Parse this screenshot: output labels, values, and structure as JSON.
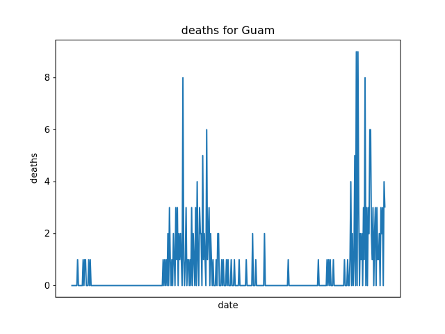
{
  "chart_data": {
    "type": "line",
    "title": "deaths for Guam",
    "xlabel": "date",
    "ylabel": "deaths",
    "ylim": [
      -0.45,
      9.45
    ],
    "yticks": [
      0,
      2,
      4,
      6,
      8
    ],
    "grid": false,
    "legend": "none",
    "x_tick_labels": [],
    "series": [
      {
        "color": "#1f77b4",
        "values": [
          0,
          0,
          0,
          0,
          0,
          0,
          0,
          0,
          1,
          0,
          0,
          0,
          0,
          0,
          0,
          1,
          0,
          1,
          1,
          0,
          0,
          0,
          1,
          0,
          1,
          0,
          0,
          0,
          0,
          0,
          0,
          0,
          0,
          0,
          0,
          0,
          0,
          0,
          0,
          0,
          0,
          0,
          0,
          0,
          0,
          0,
          0,
          0,
          0,
          0,
          0,
          0,
          0,
          0,
          0,
          0,
          0,
          0,
          0,
          0,
          0,
          0,
          0,
          0,
          0,
          0,
          0,
          0,
          0,
          0,
          0,
          0,
          0,
          0,
          0,
          0,
          0,
          0,
          0,
          0,
          0,
          0,
          0,
          0,
          0,
          0,
          0,
          0,
          0,
          0,
          0,
          0,
          0,
          0,
          0,
          0,
          0,
          0,
          0,
          0,
          0,
          0,
          0,
          0,
          0,
          0,
          0,
          0,
          0,
          0,
          0,
          0,
          0,
          0,
          0,
          0,
          1,
          0,
          1,
          0,
          1,
          0,
          2,
          0,
          3,
          1,
          0,
          1,
          0,
          2,
          1,
          0,
          3,
          1,
          3,
          0,
          2,
          1,
          2,
          1,
          0,
          8,
          1,
          0,
          1,
          3,
          0,
          1,
          1,
          0,
          1,
          0,
          3,
          0,
          2,
          1,
          0,
          3,
          0,
          4,
          1,
          0,
          3,
          2,
          2,
          0,
          5,
          1,
          2,
          1,
          0,
          6,
          1,
          2,
          3,
          0,
          2,
          1,
          0,
          1,
          0,
          0,
          0,
          1,
          0,
          2,
          2,
          0,
          0,
          0,
          1,
          0,
          1,
          0,
          0,
          0,
          1,
          0,
          1,
          0,
          0,
          0,
          1,
          0,
          0,
          0,
          1,
          0,
          0,
          0,
          0,
          0,
          1,
          0,
          0,
          0,
          0,
          0,
          0,
          0,
          0,
          1,
          0,
          0,
          0,
          0,
          0,
          0,
          0,
          2,
          0,
          0,
          0,
          1,
          0,
          0,
          0,
          0,
          0,
          0,
          0,
          0,
          0,
          0,
          2,
          0,
          0,
          0,
          0,
          0,
          0,
          0,
          0,
          0,
          0,
          0,
          0,
          0,
          0,
          0,
          0,
          0,
          0,
          0,
          0,
          0,
          0,
          0,
          0,
          0,
          0,
          0,
          0,
          0,
          1,
          0,
          0,
          0,
          0,
          0,
          0,
          0,
          0,
          0,
          0,
          0,
          0,
          0,
          0,
          0,
          0,
          0,
          0,
          0,
          0,
          0,
          0,
          0,
          0,
          0,
          0,
          0,
          0,
          0,
          0,
          0,
          0,
          0,
          0,
          0,
          0,
          0,
          1,
          0,
          0,
          0,
          0,
          0,
          0,
          0,
          0,
          0,
          0,
          1,
          0,
          1,
          0,
          1,
          0,
          0,
          0,
          1,
          0,
          0,
          0,
          0,
          0,
          0,
          0,
          0,
          0,
          0,
          0,
          0,
          0,
          1,
          0,
          0,
          0,
          1,
          0,
          0,
          1,
          4,
          0,
          2,
          0,
          1,
          5,
          0,
          9,
          0,
          9,
          3,
          0,
          2,
          1,
          2,
          0,
          3,
          1,
          8,
          0,
          3,
          0,
          3,
          2,
          6,
          6,
          2,
          1,
          3,
          0,
          2,
          3,
          0,
          3,
          1,
          1,
          2,
          0,
          3,
          2,
          3,
          0,
          4,
          3
        ]
      }
    ]
  }
}
